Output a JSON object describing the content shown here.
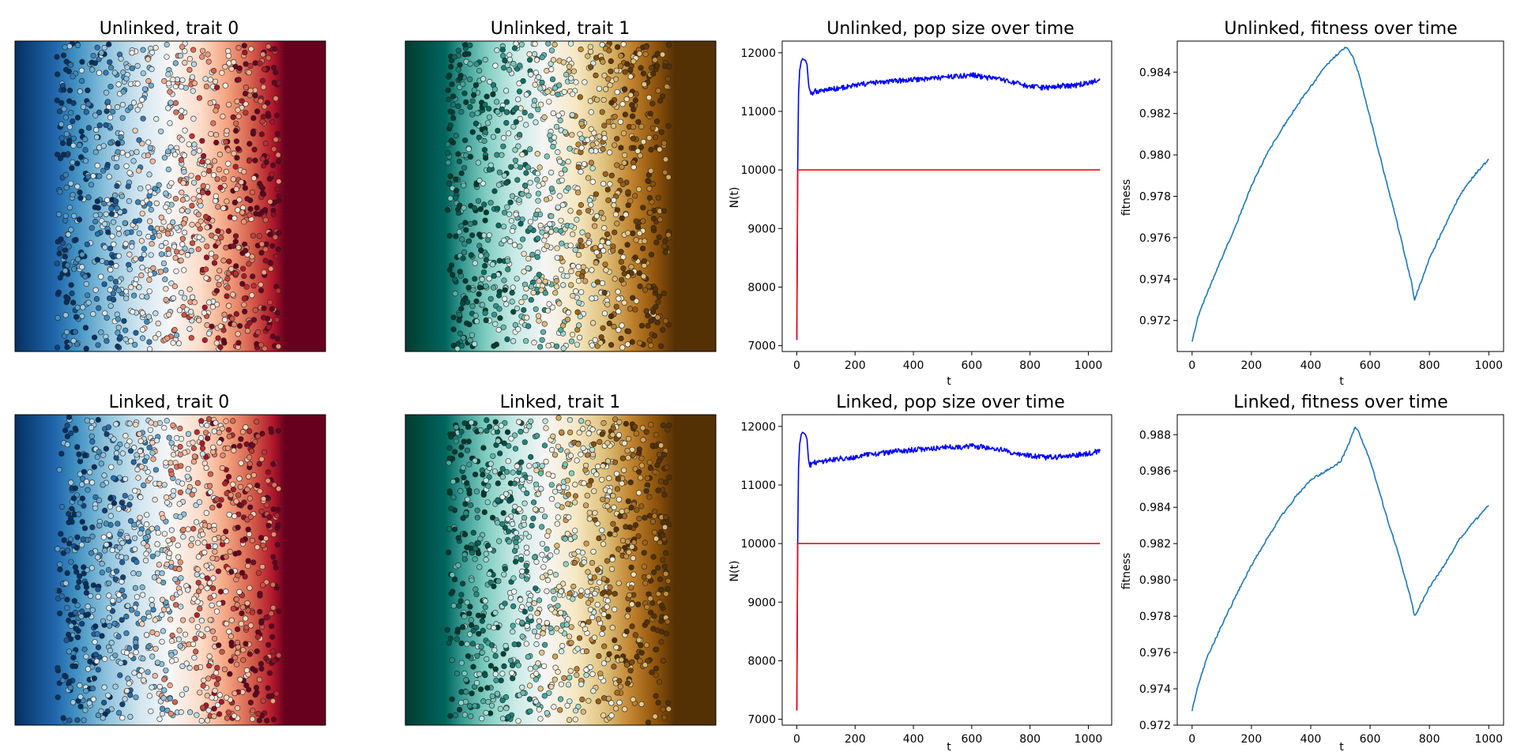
{
  "colors": {
    "rdbu": [
      "#053061",
      "#2166ac",
      "#4393c3",
      "#92c5de",
      "#d1e5f0",
      "#f7f7f7",
      "#fddbc7",
      "#f4a582",
      "#d6604d",
      "#b2182b",
      "#67001f"
    ],
    "brbg": [
      "#003c30",
      "#01665e",
      "#35978f",
      "#80cdc1",
      "#c7eae5",
      "#f5f5f5",
      "#f6e8c3",
      "#dfc27d",
      "#bf812d",
      "#8c510a",
      "#543005"
    ],
    "pop_line": "#0000ff",
    "carrying_line": "#ff0000",
    "fitness_line": "#1f77b4"
  },
  "chart_data": [
    {
      "type": "heatmap",
      "title": "Unlinked, trait 0",
      "colormap": "RdBu_r",
      "description_of_points": "thousands of individuals colored by trait 0, background gradient from blue (left) to red (right)"
    },
    {
      "type": "heatmap",
      "title": "Unlinked, trait 1",
      "colormap": "BrBG_r",
      "description_of_points": "thousands of individuals colored by trait 1, background gradient from teal (left) to brown (right)"
    },
    {
      "type": "line",
      "title": "Unlinked, pop size over time",
      "xlabel": "t",
      "ylabel": "N(t)",
      "xlim": [
        -50,
        1080
      ],
      "ylim": [
        6900,
        12200
      ],
      "xticks": [
        0,
        200,
        400,
        600,
        800,
        1000
      ],
      "yticks": [
        7000,
        8000,
        9000,
        10000,
        11000,
        12000
      ],
      "series": [
        {
          "color": "blue",
          "x": [
            0,
            3,
            6,
            10,
            15,
            20,
            25,
            30,
            35,
            40,
            45,
            50,
            60,
            80,
            100,
            150,
            200,
            250,
            300,
            350,
            400,
            450,
            500,
            550,
            600,
            650,
            700,
            750,
            800,
            850,
            900,
            950,
            1000,
            1040
          ],
          "y": [
            7100,
            10000,
            11300,
            11700,
            11850,
            11900,
            11880,
            11870,
            11800,
            11500,
            11320,
            11300,
            11340,
            11350,
            11370,
            11400,
            11440,
            11480,
            11500,
            11520,
            11540,
            11560,
            11580,
            11600,
            11620,
            11580,
            11540,
            11480,
            11420,
            11400,
            11430,
            11440,
            11480,
            11540
          ]
        },
        {
          "color": "red",
          "x": [
            0,
            3,
            3,
            1040
          ],
          "y": [
            7100,
            10000,
            10000,
            10000
          ]
        }
      ]
    },
    {
      "type": "line",
      "title": "Unlinked, fitness over time",
      "xlabel": "t",
      "ylabel": "fitness",
      "xlim": [
        -50,
        1050
      ],
      "ylim": [
        0.9705,
        0.9855
      ],
      "xticks": [
        0,
        200,
        400,
        600,
        800,
        1000
      ],
      "yticks": [
        0.972,
        0.974,
        0.976,
        0.978,
        0.98,
        0.982,
        0.984
      ],
      "series": [
        {
          "color": "tab:blue",
          "x": [
            0,
            20,
            50,
            100,
            150,
            200,
            250,
            300,
            350,
            400,
            450,
            500,
            520,
            540,
            560,
            600,
            650,
            700,
            740,
            750,
            760,
            800,
            850,
            900,
            950,
            1000
          ],
          "y": [
            0.971,
            0.9722,
            0.9733,
            0.975,
            0.9767,
            0.9785,
            0.98,
            0.9812,
            0.9823,
            0.9833,
            0.9843,
            0.985,
            0.9852,
            0.9848,
            0.984,
            0.9818,
            0.979,
            0.9762,
            0.9738,
            0.973,
            0.9734,
            0.975,
            0.9765,
            0.978,
            0.979,
            0.9798
          ]
        }
      ]
    },
    {
      "type": "heatmap",
      "title": "Linked, trait 0",
      "colormap": "RdBu_r",
      "description_of_points": "thousands of individuals colored by trait 0, background gradient from blue (left) to red (right)"
    },
    {
      "type": "heatmap",
      "title": "Linked, trait 1",
      "colormap": "BrBG_r",
      "description_of_points": "thousands of individuals colored by trait 1, background gradient from teal (left) to brown (right)"
    },
    {
      "type": "line",
      "title": "Linked, pop size over time",
      "xlabel": "t",
      "ylabel": "N(t)",
      "xlim": [
        -50,
        1080
      ],
      "ylim": [
        6900,
        12200
      ],
      "xticks": [
        0,
        200,
        400,
        600,
        800,
        1000
      ],
      "yticks": [
        7000,
        8000,
        9000,
        10000,
        11000,
        12000
      ],
      "series": [
        {
          "color": "blue",
          "x": [
            0,
            3,
            6,
            10,
            15,
            20,
            25,
            30,
            35,
            40,
            45,
            50,
            60,
            80,
            100,
            150,
            200,
            250,
            300,
            350,
            400,
            450,
            500,
            550,
            600,
            650,
            700,
            750,
            800,
            850,
            900,
            950,
            1000,
            1040
          ],
          "y": [
            7150,
            10000,
            11300,
            11700,
            11860,
            11900,
            11880,
            11860,
            11780,
            11450,
            11350,
            11350,
            11380,
            11400,
            11420,
            11450,
            11480,
            11520,
            11550,
            11580,
            11600,
            11620,
            11640,
            11650,
            11660,
            11640,
            11600,
            11540,
            11500,
            11470,
            11480,
            11500,
            11540,
            11580
          ]
        },
        {
          "color": "red",
          "x": [
            0,
            3,
            3,
            1040
          ],
          "y": [
            7150,
            10000,
            10000,
            10000
          ]
        }
      ]
    },
    {
      "type": "line",
      "title": "Linked, fitness over time",
      "xlabel": "t",
      "ylabel": "fitness",
      "xlim": [
        -50,
        1050
      ],
      "ylim": [
        0.972,
        0.9891
      ],
      "xticks": [
        0,
        200,
        400,
        600,
        800,
        1000
      ],
      "yticks": [
        0.972,
        0.974,
        0.976,
        0.978,
        0.98,
        0.982,
        0.984,
        0.986,
        0.988
      ],
      "series": [
        {
          "color": "tab:blue",
          "x": [
            0,
            20,
            50,
            100,
            150,
            200,
            250,
            300,
            350,
            400,
            450,
            500,
            520,
            540,
            550,
            560,
            600,
            650,
            700,
            740,
            750,
            760,
            800,
            850,
            900,
            950,
            1000
          ],
          "y": [
            0.9728,
            0.9742,
            0.9757,
            0.9775,
            0.9792,
            0.9808,
            0.9822,
            0.9835,
            0.9846,
            0.9855,
            0.986,
            0.9865,
            0.9872,
            0.988,
            0.9884,
            0.9882,
            0.9866,
            0.9838,
            0.9812,
            0.9788,
            0.978,
            0.9783,
            0.9796,
            0.9808,
            0.9822,
            0.9832,
            0.9841
          ]
        }
      ]
    }
  ]
}
